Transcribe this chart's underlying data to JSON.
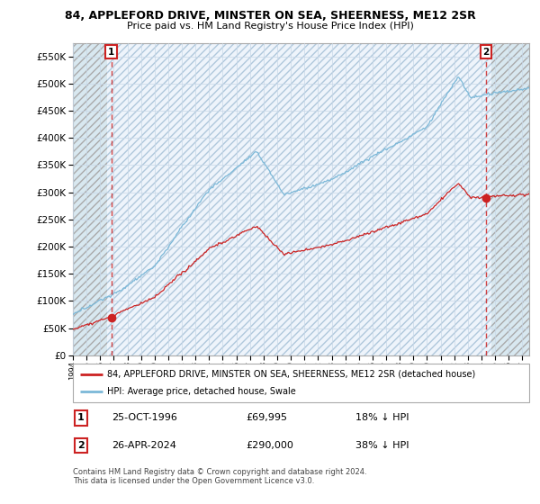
{
  "title_line1": "84, APPLEFORD DRIVE, MINSTER ON SEA, SHEERNESS, ME12 2SR",
  "title_line2": "Price paid vs. HM Land Registry's House Price Index (HPI)",
  "legend_red": "84, APPLEFORD DRIVE, MINSTER ON SEA, SHEERNESS, ME12 2SR (detached house)",
  "legend_blue": "HPI: Average price, detached house, Swale",
  "point1_date": "25-OCT-1996",
  "point1_price": "£69,995",
  "point1_hpi": "18% ↓ HPI",
  "point2_date": "26-APR-2024",
  "point2_price": "£290,000",
  "point2_hpi": "38% ↓ HPI",
  "footer": "Contains HM Land Registry data © Crown copyright and database right 2024.\nThis data is licensed under the Open Government Licence v3.0.",
  "ylim": [
    0,
    575000
  ],
  "xlim_start": 1994.0,
  "xlim_end": 2027.5,
  "point1_x": 1996.82,
  "point1_y": 69995,
  "point2_x": 2024.32,
  "point2_y": 290000,
  "hpi_color": "#7bb8d8",
  "price_color": "#cc2222",
  "hatch_left_end": 1996.5,
  "hatch_right_start": 2024.7,
  "background_color": "#ffffff",
  "plot_bg_color": "#eef4fb",
  "grid_color": "#c8d8e8"
}
